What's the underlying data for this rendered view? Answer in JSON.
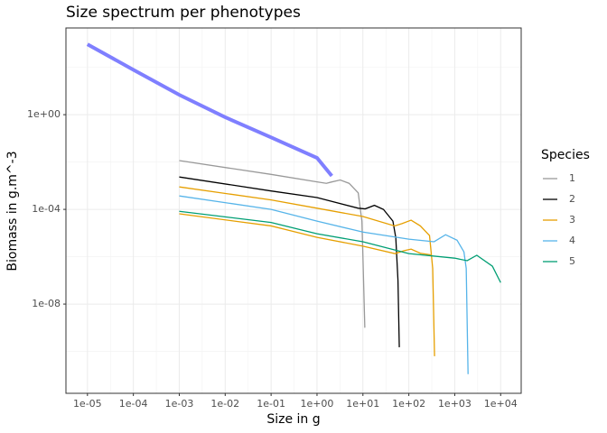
{
  "chart_data": {
    "type": "line",
    "title": "Size spectrum per phenotypes",
    "x_label": "Size in g",
    "y_label": "Biomass in g.m^-3",
    "legend_title": "Species",
    "xlog": true,
    "ylog": true,
    "grid": true,
    "xlim": [
      3.4e-06,
      28000
    ],
    "ylim": [
      1.7e-12,
      4600
    ],
    "xticks": [
      {
        "value": 1e-05,
        "label": "1e-05"
      },
      {
        "value": 0.0001,
        "label": "1e-04"
      },
      {
        "value": 0.001,
        "label": "1e-03"
      },
      {
        "value": 0.01,
        "label": "1e-02"
      },
      {
        "value": 0.1,
        "label": "1e-01"
      },
      {
        "value": 1,
        "label": "1e+00"
      },
      {
        "value": 10,
        "label": "1e+01"
      },
      {
        "value": 100,
        "label": "1e+02"
      },
      {
        "value": 1000,
        "label": "1e+03"
      },
      {
        "value": 10000,
        "label": "1e+04"
      }
    ],
    "xminor": [
      3.16e-05,
      0.000316,
      0.00316,
      0.0316,
      0.316,
      3.16,
      31.6,
      316,
      3162
    ],
    "yticks": [
      {
        "value": 1,
        "label": "1e+00"
      },
      {
        "value": 0.0001,
        "label": "1e-04"
      },
      {
        "value": 1e-08,
        "label": "1e-08"
      }
    ],
    "yminor": [
      100,
      0.01,
      1e-06,
      1e-10
    ],
    "background": {
      "color": "#7f7fff",
      "x": [
        1e-05,
        0.0001,
        0.001,
        0.01,
        0.1,
        1,
        2.1
      ],
      "values": [
        933,
        79,
        6.9,
        0.78,
        0.11,
        0.015,
        0.0026
      ]
    },
    "series": [
      {
        "name": "1",
        "color": "#999999",
        "lines": [
          {
            "x": [
              0.001,
              0.1,
              1,
              1.6,
              2,
              3.2,
              5,
              7.9,
              9.5,
              10,
              11
            ],
            "values": [
              0.0115,
              0.003,
              0.00145,
              0.00126,
              0.00141,
              0.00174,
              0.00126,
              0.0005,
              3.2e-05,
              1e-06,
              1e-09
            ]
          }
        ]
      },
      {
        "name": "2",
        "color": "#000000",
        "lines": [
          {
            "x": [
              0.001,
              0.1,
              1,
              7.9,
              11.2,
              17.8,
              28,
              45,
              52,
              58,
              62
            ],
            "values": [
              0.00234,
              0.0006,
              0.000316,
              0.000112,
              0.000105,
              0.000148,
              0.0001,
              3.2e-05,
              6.3e-06,
              1e-07,
              1.5e-10
            ]
          }
        ]
      },
      {
        "name": "3",
        "color": "#e69f00",
        "lines": [
          {
            "x": [
              0.001,
              0.1,
              1,
              10,
              49,
              71,
              112,
              178,
              282,
              331,
              363
            ],
            "values": [
              0.00089,
              0.00025,
              0.000112,
              5e-05,
              2e-05,
              2.5e-05,
              3.5e-05,
              2e-05,
              7.9e-06,
              3.2e-07,
              6.3e-11
            ]
          },
          {
            "x": [
              0.001,
              0.1,
              1,
              10,
              50,
              79,
              112,
              178,
              300
            ],
            "values": [
              6.5e-05,
              2e-05,
              6.6e-06,
              2.8e-06,
              1.35e-06,
              1.8e-06,
              2.1e-06,
              1.4e-06,
              1.2e-06
            ]
          }
        ]
      },
      {
        "name": "4",
        "color": "#56b4e9",
        "lines": [
          {
            "x": [
              0.001,
              0.1,
              1,
              10,
              100,
              355,
              631,
              1122,
              1585,
              1778,
              1950
            ],
            "values": [
              0.00037,
              0.0001,
              3.2e-05,
              1.1e-05,
              5.5e-06,
              4.3e-06,
              8.5e-06,
              5e-06,
              1.6e-06,
              3.2e-07,
              1.1e-11
            ]
          }
        ]
      },
      {
        "name": "5",
        "color": "#009e73",
        "lines": [
          {
            "x": [
              0.001,
              0.1,
              1,
              10,
              100,
              1000,
              1862,
              3020,
              6607,
              10000
            ],
            "values": [
              8.3e-05,
              2.8e-05,
              9.3e-06,
              4.3e-06,
              1.35e-06,
              8.7e-07,
              6.8e-07,
              1.15e-06,
              4e-07,
              8.1e-08
            ]
          }
        ]
      }
    ]
  }
}
